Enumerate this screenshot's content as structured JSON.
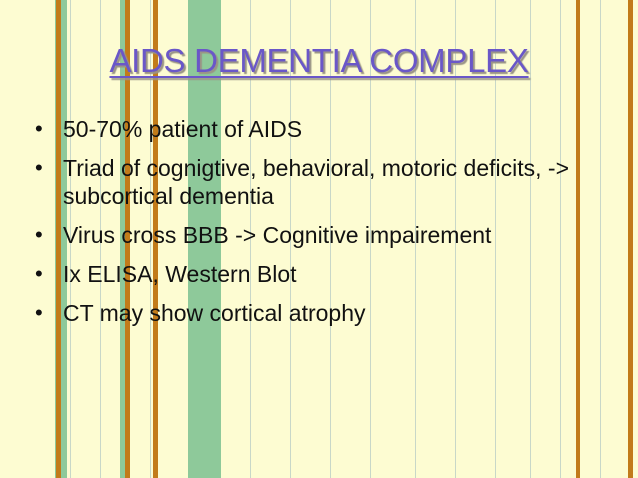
{
  "slide": {
    "title": "AIDS DEMENTIA COMPLEX",
    "bullet_glyph": "•",
    "bullets": [
      "50-70% patient of AIDS",
      "Triad of cognigtive, behavioral, motoric deficits, -> subcortical dementia",
      "Virus cross BBB -> Cognitive impairement",
      "Ix ELISA, Western Blot",
      "CT may show cortical atrophy"
    ]
  },
  "colors": {
    "background": "#fdfcd2",
    "title": "#6a57c8",
    "stripe_green": "#8ec99a",
    "stripe_orange": "#c27b1a"
  }
}
